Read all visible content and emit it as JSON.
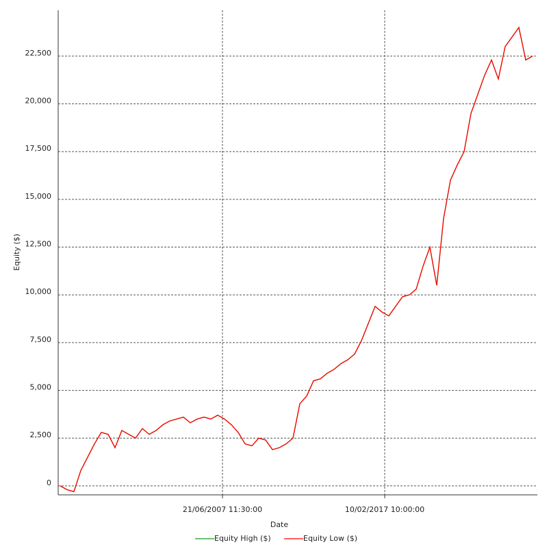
{
  "chart_data": {
    "type": "line",
    "x_label": "Date",
    "y_label": "Equity ($)",
    "x": [
      0,
      1,
      2,
      3,
      4,
      5,
      6,
      7,
      8,
      9,
      10,
      11,
      12,
      13,
      14,
      15,
      16,
      17,
      18,
      19,
      20,
      21,
      22,
      23,
      24,
      25,
      26,
      27,
      28,
      29,
      30,
      31,
      32,
      33,
      34,
      35,
      36,
      37,
      38,
      39,
      40,
      41,
      42,
      43,
      44,
      45,
      46,
      47,
      48,
      49,
      50,
      51,
      52,
      53,
      54,
      55,
      56,
      57,
      58,
      59,
      60,
      61,
      62,
      63,
      64,
      65,
      66,
      67,
      68,
      69
    ],
    "series": [
      {
        "name": "Equity High ($)",
        "color": "#1a9a1a",
        "values": [
          0,
          -200,
          -300,
          800,
          1500,
          2200,
          2800,
          2700,
          2000,
          2900,
          2700,
          2500,
          3000,
          2700,
          2900,
          3200,
          3400,
          3500,
          3600,
          3300,
          3500,
          3600,
          3500,
          3700,
          3500,
          3200,
          2800,
          2200,
          2100,
          2500,
          2400,
          1900,
          2000,
          2200,
          2500,
          4300,
          4700,
          5500,
          5600,
          5900,
          6100,
          6400,
          6600,
          6900,
          7600,
          8500,
          9400,
          9100,
          8900,
          9400,
          9900,
          10000,
          10300,
          11500,
          12500,
          10500,
          14000,
          16000,
          16800,
          17500,
          19500,
          20500,
          21500,
          22300,
          21300,
          23000,
          23500,
          24000,
          22300,
          22500
        ]
      },
      {
        "name": "Equity Low ($)",
        "color": "#ff0000",
        "values": [
          0,
          -200,
          -300,
          800,
          1500,
          2200,
          2800,
          2700,
          2000,
          2900,
          2700,
          2500,
          3000,
          2700,
          2900,
          3200,
          3400,
          3500,
          3600,
          3300,
          3500,
          3600,
          3500,
          3700,
          3500,
          3200,
          2800,
          2200,
          2100,
          2500,
          2400,
          1900,
          2000,
          2200,
          2500,
          4300,
          4700,
          5500,
          5600,
          5900,
          6100,
          6400,
          6600,
          6900,
          7600,
          8500,
          9400,
          9100,
          8900,
          9400,
          9900,
          10000,
          10300,
          11500,
          12500,
          10500,
          14000,
          16000,
          16800,
          17500,
          19500,
          20500,
          21500,
          22300,
          21300,
          23000,
          23500,
          24000,
          22300,
          22500
        ]
      }
    ],
    "xlim": [
      -0.3,
      69.7
    ],
    "xticks": [
      {
        "value": 23.7,
        "label": "21/06/2007 11:30:00"
      },
      {
        "value": 47.4,
        "label": "10/02/2017 10:00:00"
      }
    ],
    "ylim": [
      -470,
      24900
    ],
    "yticks": [
      0,
      {
        "value": 2500,
        "label": "2,500"
      },
      {
        "value": 5000,
        "label": "5,000"
      },
      {
        "value": 7500,
        "label": "7,500"
      },
      {
        "value": 10000,
        "label": "10,000"
      },
      {
        "value": 12500,
        "label": "12,500"
      },
      {
        "value": 15000,
        "label": "15,000"
      },
      {
        "value": 17500,
        "label": "17,500"
      },
      {
        "value": 20000,
        "label": "20,000"
      },
      {
        "value": 22500,
        "label": "22,500"
      }
    ],
    "grid": true,
    "legend": "bottom"
  }
}
